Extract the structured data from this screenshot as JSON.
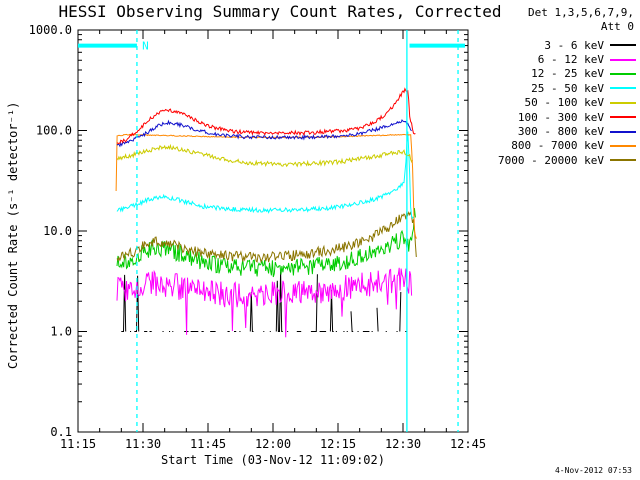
{
  "legend": {
    "title_line1": "Det 1,3,5,6,7,9,",
    "title_line2": "Att 0"
  },
  "footer": {
    "timestamp": "4-Nov-2012 07:53"
  },
  "chart_data": {
    "type": "line",
    "title": "HESSI Observing Summary Count Rates, Corrected",
    "xlabel": "Start Time (03-Nov-12 11:09:02)",
    "ylabel": "Corrected Count Rate (s⁻¹ detector⁻¹)",
    "x_unit": "minutes after 11:00 on 03-Nov-12",
    "x_range_minutes": [
      15,
      105
    ],
    "x_minor_step": 5,
    "x_major_ticks": [
      {
        "t": 15,
        "label": "11:15"
      },
      {
        "t": 30,
        "label": "11:30"
      },
      {
        "t": 45,
        "label": "11:45"
      },
      {
        "t": 60,
        "label": "12:00"
      },
      {
        "t": 75,
        "label": "12:15"
      },
      {
        "t": 90,
        "label": "12:30"
      },
      {
        "t": 105,
        "label": "12:45"
      }
    ],
    "y_scale": "log",
    "ylim": [
      0.1,
      1000
    ],
    "y_major_ticks": [
      {
        "v": 0.1,
        "label": "0.1"
      },
      {
        "v": 1,
        "label": "1.0"
      },
      {
        "v": 10,
        "label": "10.0"
      },
      {
        "v": 100,
        "label": "100.0"
      },
      {
        "v": 1000,
        "label": "1000.0"
      }
    ],
    "grid": false,
    "legend_position": "top-right-outside",
    "draw_order": [
      0,
      1,
      2,
      8,
      3,
      4,
      7,
      6,
      5
    ],
    "series": [
      {
        "name": "3 - 6 keV",
        "color": "#000000",
        "style": "spiky",
        "base": 1.0,
        "start": 25,
        "end": 92,
        "gap_prob": 0.45,
        "spike_prob": 0.07,
        "spike_max": 4
      },
      {
        "name": "6 - 12 keV",
        "color": "#ff00ff",
        "noise": 0.3,
        "dropout": 0.05,
        "points": [
          [
            24,
            2.6
          ],
          [
            28,
            2.8
          ],
          [
            32,
            3.0
          ],
          [
            36,
            2.9
          ],
          [
            41,
            2.6
          ],
          [
            46,
            2.4
          ],
          [
            52,
            2.3
          ],
          [
            60,
            2.35
          ],
          [
            68,
            2.5
          ],
          [
            74,
            2.6
          ],
          [
            79,
            2.8
          ],
          [
            84,
            3.0
          ],
          [
            88,
            3.2
          ],
          [
            90.5,
            3.3
          ],
          [
            92,
            3.0
          ]
        ]
      },
      {
        "name": "12 - 25 keV",
        "color": "#00cc00",
        "noise": 0.2,
        "points": [
          [
            24,
            4.8
          ],
          [
            28,
            5.5
          ],
          [
            31,
            6.5
          ],
          [
            33,
            7.0
          ],
          [
            36,
            6.5
          ],
          [
            40,
            5.6
          ],
          [
            45,
            4.8
          ],
          [
            52,
            4.3
          ],
          [
            60,
            4.2
          ],
          [
            68,
            4.4
          ],
          [
            75,
            4.8
          ],
          [
            80,
            5.5
          ],
          [
            84,
            6.3
          ],
          [
            87,
            7.2
          ],
          [
            89,
            8.0
          ],
          [
            90.5,
            8.5
          ],
          [
            91.5,
            7.0
          ],
          [
            92.3,
            12
          ],
          [
            92.8,
            15
          ],
          [
            93,
            13
          ]
        ]
      },
      {
        "name": "25 - 50 keV",
        "color": "#00ffff",
        "noise": 0.05,
        "points": [
          [
            24,
            16
          ],
          [
            28,
            18
          ],
          [
            32,
            21
          ],
          [
            35,
            22
          ],
          [
            39,
            20
          ],
          [
            44,
            17.5
          ],
          [
            50,
            16.5
          ],
          [
            58,
            16
          ],
          [
            66,
            16.3
          ],
          [
            74,
            17
          ],
          [
            80,
            19
          ],
          [
            84,
            21
          ],
          [
            87,
            24
          ],
          [
            89,
            27
          ],
          [
            90.3,
            30
          ],
          [
            90.8,
            60
          ],
          [
            91.1,
            100
          ],
          [
            91.4,
            55
          ],
          [
            91.8,
            15
          ],
          [
            92.5,
            13
          ]
        ]
      },
      {
        "name": "50 - 100 keV",
        "color": "#cccc00",
        "noise": 0.05,
        "points": [
          [
            24,
            52
          ],
          [
            27,
            56
          ],
          [
            31,
            63
          ],
          [
            34,
            67
          ],
          [
            36,
            68
          ],
          [
            40,
            63
          ],
          [
            45,
            56
          ],
          [
            50,
            50
          ],
          [
            56,
            47
          ],
          [
            64,
            46
          ],
          [
            70,
            47
          ],
          [
            76,
            49
          ],
          [
            80,
            52
          ],
          [
            84,
            56
          ],
          [
            88,
            60
          ],
          [
            90,
            62
          ],
          [
            91.5,
            55
          ],
          [
            92.3,
            48
          ]
        ]
      },
      {
        "name": "100 - 300 keV",
        "color": "#ff0000",
        "noise": 0.045,
        "points": [
          [
            24,
            75
          ],
          [
            26,
            80
          ],
          [
            29,
            100
          ],
          [
            32,
            135
          ],
          [
            34,
            155
          ],
          [
            36,
            158
          ],
          [
            39,
            148
          ],
          [
            43,
            120
          ],
          [
            47,
            105
          ],
          [
            52,
            97
          ],
          [
            58,
            94
          ],
          [
            64,
            94
          ],
          [
            70,
            96
          ],
          [
            76,
            99
          ],
          [
            80,
            106
          ],
          [
            84,
            125
          ],
          [
            87,
            160
          ],
          [
            89,
            210
          ],
          [
            90.5,
            258
          ],
          [
            91.2,
            248
          ],
          [
            91.6,
            130
          ],
          [
            92.5,
            95
          ],
          [
            93,
            90
          ]
        ]
      },
      {
        "name": "300 - 800 keV",
        "color": "#1111cc",
        "noise": 0.04,
        "points": [
          [
            24,
            70
          ],
          [
            27,
            78
          ],
          [
            31,
            95
          ],
          [
            34,
            115
          ],
          [
            36,
            120
          ],
          [
            39,
            113
          ],
          [
            43,
            100
          ],
          [
            48,
            90
          ],
          [
            54,
            86
          ],
          [
            62,
            85
          ],
          [
            70,
            86
          ],
          [
            76,
            88
          ],
          [
            80,
            93
          ],
          [
            84,
            103
          ],
          [
            87,
            112
          ],
          [
            89,
            120
          ],
          [
            90.5,
            127
          ],
          [
            91.3,
            110
          ],
          [
            92,
            100
          ]
        ]
      },
      {
        "name": "800 - 7000 keV",
        "color": "#ff8800",
        "noise": 0.01,
        "points": [
          [
            23.8,
            25
          ],
          [
            23.9,
            88
          ],
          [
            26,
            91
          ],
          [
            32,
            90
          ],
          [
            40,
            88
          ],
          [
            50,
            86
          ],
          [
            60,
            85
          ],
          [
            70,
            86
          ],
          [
            80,
            88
          ],
          [
            86,
            90
          ],
          [
            90,
            91
          ],
          [
            91.8,
            90
          ],
          [
            92.2,
            45
          ],
          [
            92.6,
            10
          ],
          [
            93.2,
            8
          ]
        ]
      },
      {
        "name": "7000 - 20000 keV",
        "color": "#8B7500",
        "noise": 0.12,
        "points": [
          [
            24,
            5.5
          ],
          [
            28,
            6.2
          ],
          [
            31,
            7.5
          ],
          [
            33,
            8.0
          ],
          [
            37,
            7.2
          ],
          [
            42,
            6.3
          ],
          [
            50,
            5.6
          ],
          [
            58,
            5.4
          ],
          [
            66,
            5.8
          ],
          [
            74,
            6.5
          ],
          [
            79,
            7.4
          ],
          [
            83,
            8.8
          ],
          [
            86,
            10.5
          ],
          [
            88.5,
            12.5
          ],
          [
            90.5,
            14.5
          ],
          [
            91.8,
            14
          ],
          [
            92.6,
            12
          ],
          [
            93.2,
            4
          ]
        ]
      }
    ],
    "annotations": {
      "color": "#00ffff",
      "night_label": "N",
      "night_label_minute": 29.8,
      "bar_value": 700,
      "bar_segments_minutes": [
        [
          15,
          28.6
        ],
        [
          91.5,
          104.3
        ]
      ],
      "dashed_vlines_minutes": [
        28.6,
        102.7
      ],
      "solid_vlines_minutes": [
        90.9
      ]
    }
  }
}
